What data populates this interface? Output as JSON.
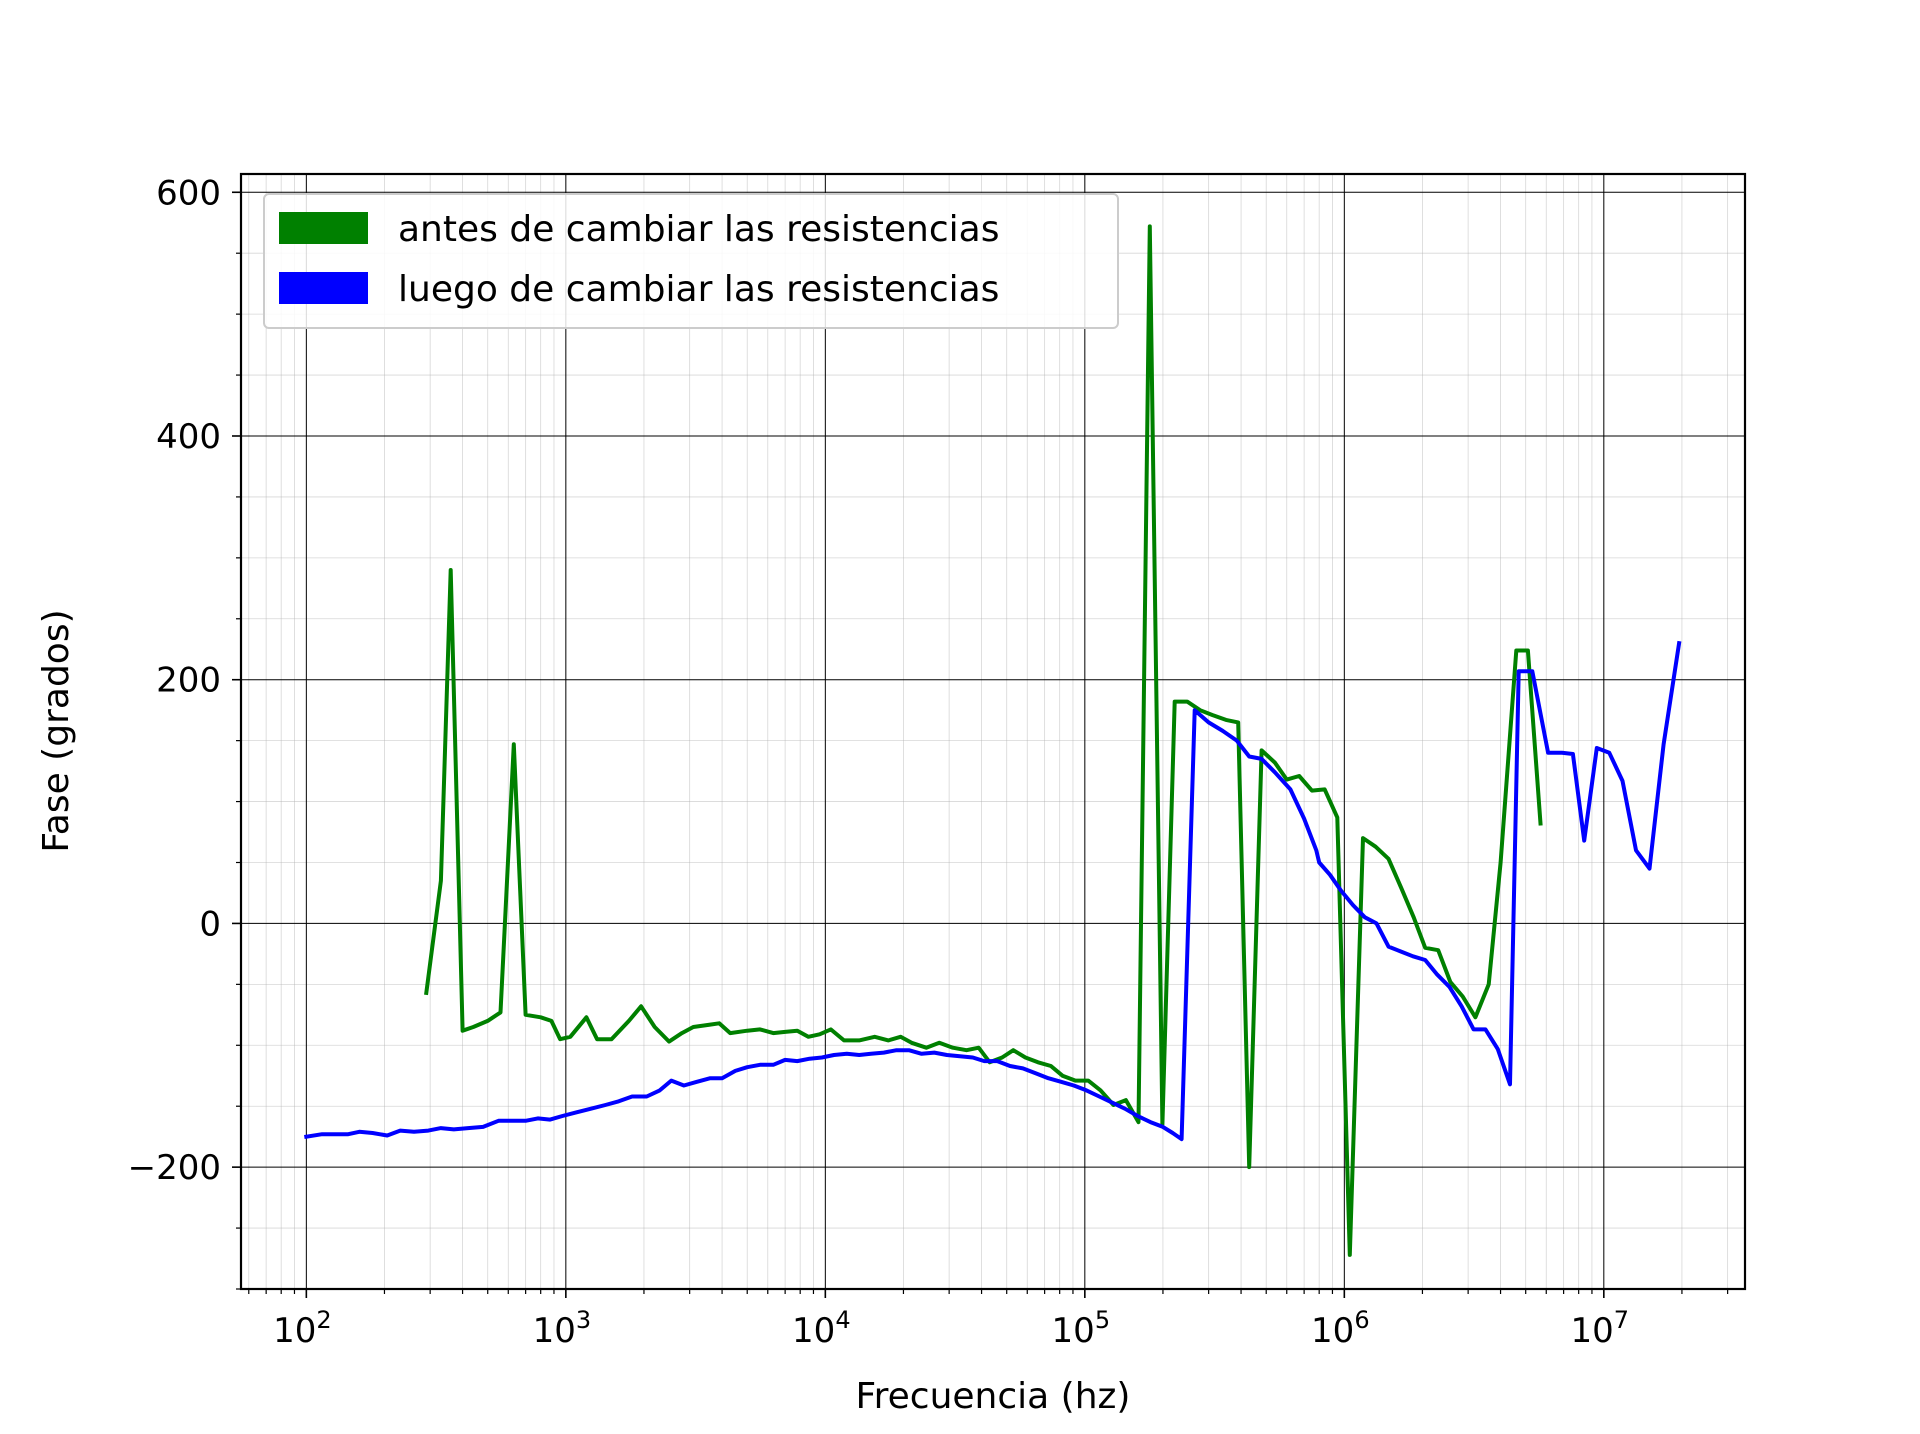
{
  "chart_data": {
    "type": "line",
    "xscale": "log",
    "xlabel": "Frecuencia (hz)",
    "ylabel": "Fase (grados)",
    "xlim": [
      56,
      35000000
    ],
    "ylim": [
      -300,
      615
    ],
    "x_ticks": [
      {
        "value": 100,
        "base": "10",
        "exp": "2"
      },
      {
        "value": 1000,
        "base": "10",
        "exp": "3"
      },
      {
        "value": 10000,
        "base": "10",
        "exp": "4"
      },
      {
        "value": 100000,
        "base": "10",
        "exp": "5"
      },
      {
        "value": 1000000,
        "base": "10",
        "exp": "6"
      },
      {
        "value": 10000000,
        "base": "10",
        "exp": "7"
      }
    ],
    "y_ticks": [
      {
        "value": 600,
        "label": "600"
      },
      {
        "value": 400,
        "label": "400"
      },
      {
        "value": 200,
        "label": "200"
      },
      {
        "value": 0,
        "label": "0"
      },
      {
        "value": -200,
        "label": "−200"
      }
    ],
    "grid": {
      "major": true,
      "minor": true
    },
    "legend_position": "upper-left",
    "series": [
      {
        "name": "antes de cambiar las resistencias",
        "color": "#008000",
        "points": [
          [
            290,
            -57
          ],
          [
            330,
            35
          ],
          [
            360,
            290
          ],
          [
            400,
            -88
          ],
          [
            440,
            -85
          ],
          [
            500,
            -80
          ],
          [
            560,
            -73
          ],
          [
            630,
            147
          ],
          [
            700,
            -75
          ],
          [
            800,
            -77
          ],
          [
            880,
            -80
          ],
          [
            950,
            -95
          ],
          [
            1040,
            -93
          ],
          [
            1200,
            -77
          ],
          [
            1320,
            -95
          ],
          [
            1500,
            -95
          ],
          [
            1750,
            -80
          ],
          [
            1950,
            -68
          ],
          [
            2200,
            -85
          ],
          [
            2500,
            -97
          ],
          [
            2800,
            -90
          ],
          [
            3100,
            -85
          ],
          [
            3600,
            -83
          ],
          [
            3900,
            -82
          ],
          [
            4300,
            -90
          ],
          [
            5000,
            -88
          ],
          [
            5600,
            -87
          ],
          [
            6300,
            -90
          ],
          [
            7000,
            -89
          ],
          [
            7800,
            -88
          ],
          [
            8600,
            -93
          ],
          [
            9500,
            -91
          ],
          [
            10500,
            -87
          ],
          [
            11800,
            -96
          ],
          [
            13500,
            -96
          ],
          [
            15500,
            -93
          ],
          [
            17500,
            -96
          ],
          [
            19500,
            -93
          ],
          [
            21500,
            -98
          ],
          [
            24500,
            -102
          ],
          [
            27500,
            -98
          ],
          [
            31000,
            -102
          ],
          [
            35000,
            -104
          ],
          [
            39000,
            -102
          ],
          [
            43000,
            -114
          ],
          [
            48000,
            -110
          ],
          [
            53000,
            -104
          ],
          [
            59000,
            -110
          ],
          [
            66000,
            -114
          ],
          [
            74000,
            -117
          ],
          [
            82000,
            -125
          ],
          [
            92000,
            -129
          ],
          [
            103000,
            -129
          ],
          [
            115000,
            -137
          ],
          [
            129000,
            -149
          ],
          [
            144000,
            -145
          ],
          [
            161000,
            -163
          ],
          [
            178000,
            572
          ],
          [
            199000,
            -165
          ],
          [
            222000,
            182
          ],
          [
            248000,
            182
          ],
          [
            278000,
            175
          ],
          [
            310000,
            171
          ],
          [
            350000,
            167
          ],
          [
            390000,
            165
          ],
          [
            430000,
            -200
          ],
          [
            480000,
            142
          ],
          [
            540000,
            132
          ],
          [
            600000,
            118
          ],
          [
            670000,
            121
          ],
          [
            750000,
            109
          ],
          [
            840000,
            110
          ],
          [
            940000,
            87
          ],
          [
            1050000,
            -272
          ],
          [
            1180000,
            70
          ],
          [
            1320000,
            63
          ],
          [
            1480000,
            53
          ],
          [
            1650000,
            30
          ],
          [
            1850000,
            5
          ],
          [
            2050000,
            -20
          ],
          [
            2300000,
            -22
          ],
          [
            2560000,
            -48
          ],
          [
            2860000,
            -60
          ],
          [
            3200000,
            -77
          ],
          [
            3600000,
            -50
          ],
          [
            4000000,
            50
          ],
          [
            4600000,
            224
          ],
          [
            5100000,
            224
          ],
          [
            5700000,
            82
          ]
        ]
      },
      {
        "name": "luego de cambiar las resistencias",
        "color": "#0000ff",
        "points": [
          [
            100,
            -175
          ],
          [
            115,
            -173
          ],
          [
            130,
            -173
          ],
          [
            145,
            -173
          ],
          [
            160,
            -171
          ],
          [
            180,
            -172
          ],
          [
            205,
            -174
          ],
          [
            230,
            -170
          ],
          [
            260,
            -171
          ],
          [
            295,
            -170
          ],
          [
            330,
            -168
          ],
          [
            370,
            -169
          ],
          [
            420,
            -168
          ],
          [
            480,
            -167
          ],
          [
            550,
            -162
          ],
          [
            620,
            -162
          ],
          [
            700,
            -162
          ],
          [
            780,
            -160
          ],
          [
            870,
            -161
          ],
          [
            970,
            -158
          ],
          [
            1100,
            -155
          ],
          [
            1250,
            -152
          ],
          [
            1420,
            -149
          ],
          [
            1600,
            -146
          ],
          [
            1800,
            -142
          ],
          [
            2050,
            -142
          ],
          [
            2300,
            -137
          ],
          [
            2550,
            -129
          ],
          [
            2850,
            -133
          ],
          [
            3200,
            -130
          ],
          [
            3600,
            -127
          ],
          [
            4000,
            -127
          ],
          [
            4500,
            -121
          ],
          [
            5000,
            -118
          ],
          [
            5600,
            -116
          ],
          [
            6300,
            -116
          ],
          [
            7000,
            -112
          ],
          [
            7800,
            -113
          ],
          [
            8700,
            -111
          ],
          [
            9700,
            -110
          ],
          [
            10800,
            -108
          ],
          [
            12100,
            -107
          ],
          [
            13500,
            -108
          ],
          [
            15000,
            -107
          ],
          [
            16800,
            -106
          ],
          [
            18800,
            -104
          ],
          [
            21000,
            -104
          ],
          [
            23500,
            -107
          ],
          [
            26300,
            -106
          ],
          [
            29400,
            -108
          ],
          [
            33000,
            -109
          ],
          [
            37000,
            -110
          ],
          [
            41000,
            -113
          ],
          [
            46000,
            -113
          ],
          [
            51500,
            -117
          ],
          [
            57700,
            -119
          ],
          [
            64600,
            -123
          ],
          [
            72300,
            -127
          ],
          [
            81000,
            -130
          ],
          [
            90700,
            -133
          ],
          [
            101500,
            -137
          ],
          [
            113700,
            -142
          ],
          [
            127400,
            -147
          ],
          [
            142700,
            -152
          ],
          [
            159800,
            -158
          ],
          [
            179000,
            -163
          ],
          [
            200000,
            -167
          ],
          [
            218000,
            -172
          ],
          [
            236000,
            -177
          ],
          [
            265000,
            175
          ],
          [
            300000,
            165
          ],
          [
            340000,
            158
          ],
          [
            385000,
            150
          ],
          [
            430000,
            137
          ],
          [
            480000,
            135
          ],
          [
            540000,
            124
          ],
          [
            620000,
            110
          ],
          [
            700000,
            86
          ],
          [
            780000,
            60
          ],
          [
            800000,
            50
          ],
          [
            880000,
            40
          ],
          [
            970000,
            27
          ],
          [
            1080000,
            15
          ],
          [
            1200000,
            5
          ],
          [
            1330000,
            0
          ],
          [
            1480000,
            -19
          ],
          [
            1650000,
            -23
          ],
          [
            1840000,
            -27
          ],
          [
            2050000,
            -30
          ],
          [
            2280000,
            -42
          ],
          [
            2540000,
            -52
          ],
          [
            2830000,
            -68
          ],
          [
            3150000,
            -87
          ],
          [
            3500000,
            -87
          ],
          [
            3900000,
            -103
          ],
          [
            4350000,
            -132
          ],
          [
            4700000,
            207
          ],
          [
            5300000,
            207
          ],
          [
            6100000,
            140
          ],
          [
            6900000,
            140
          ],
          [
            7600000,
            139
          ],
          [
            8400000,
            68
          ],
          [
            9400000,
            144
          ],
          [
            10500000,
            140
          ],
          [
            11800000,
            117
          ],
          [
            13300000,
            60
          ],
          [
            15000000,
            45
          ],
          [
            17000000,
            147
          ],
          [
            19500000,
            230
          ]
        ]
      }
    ]
  }
}
